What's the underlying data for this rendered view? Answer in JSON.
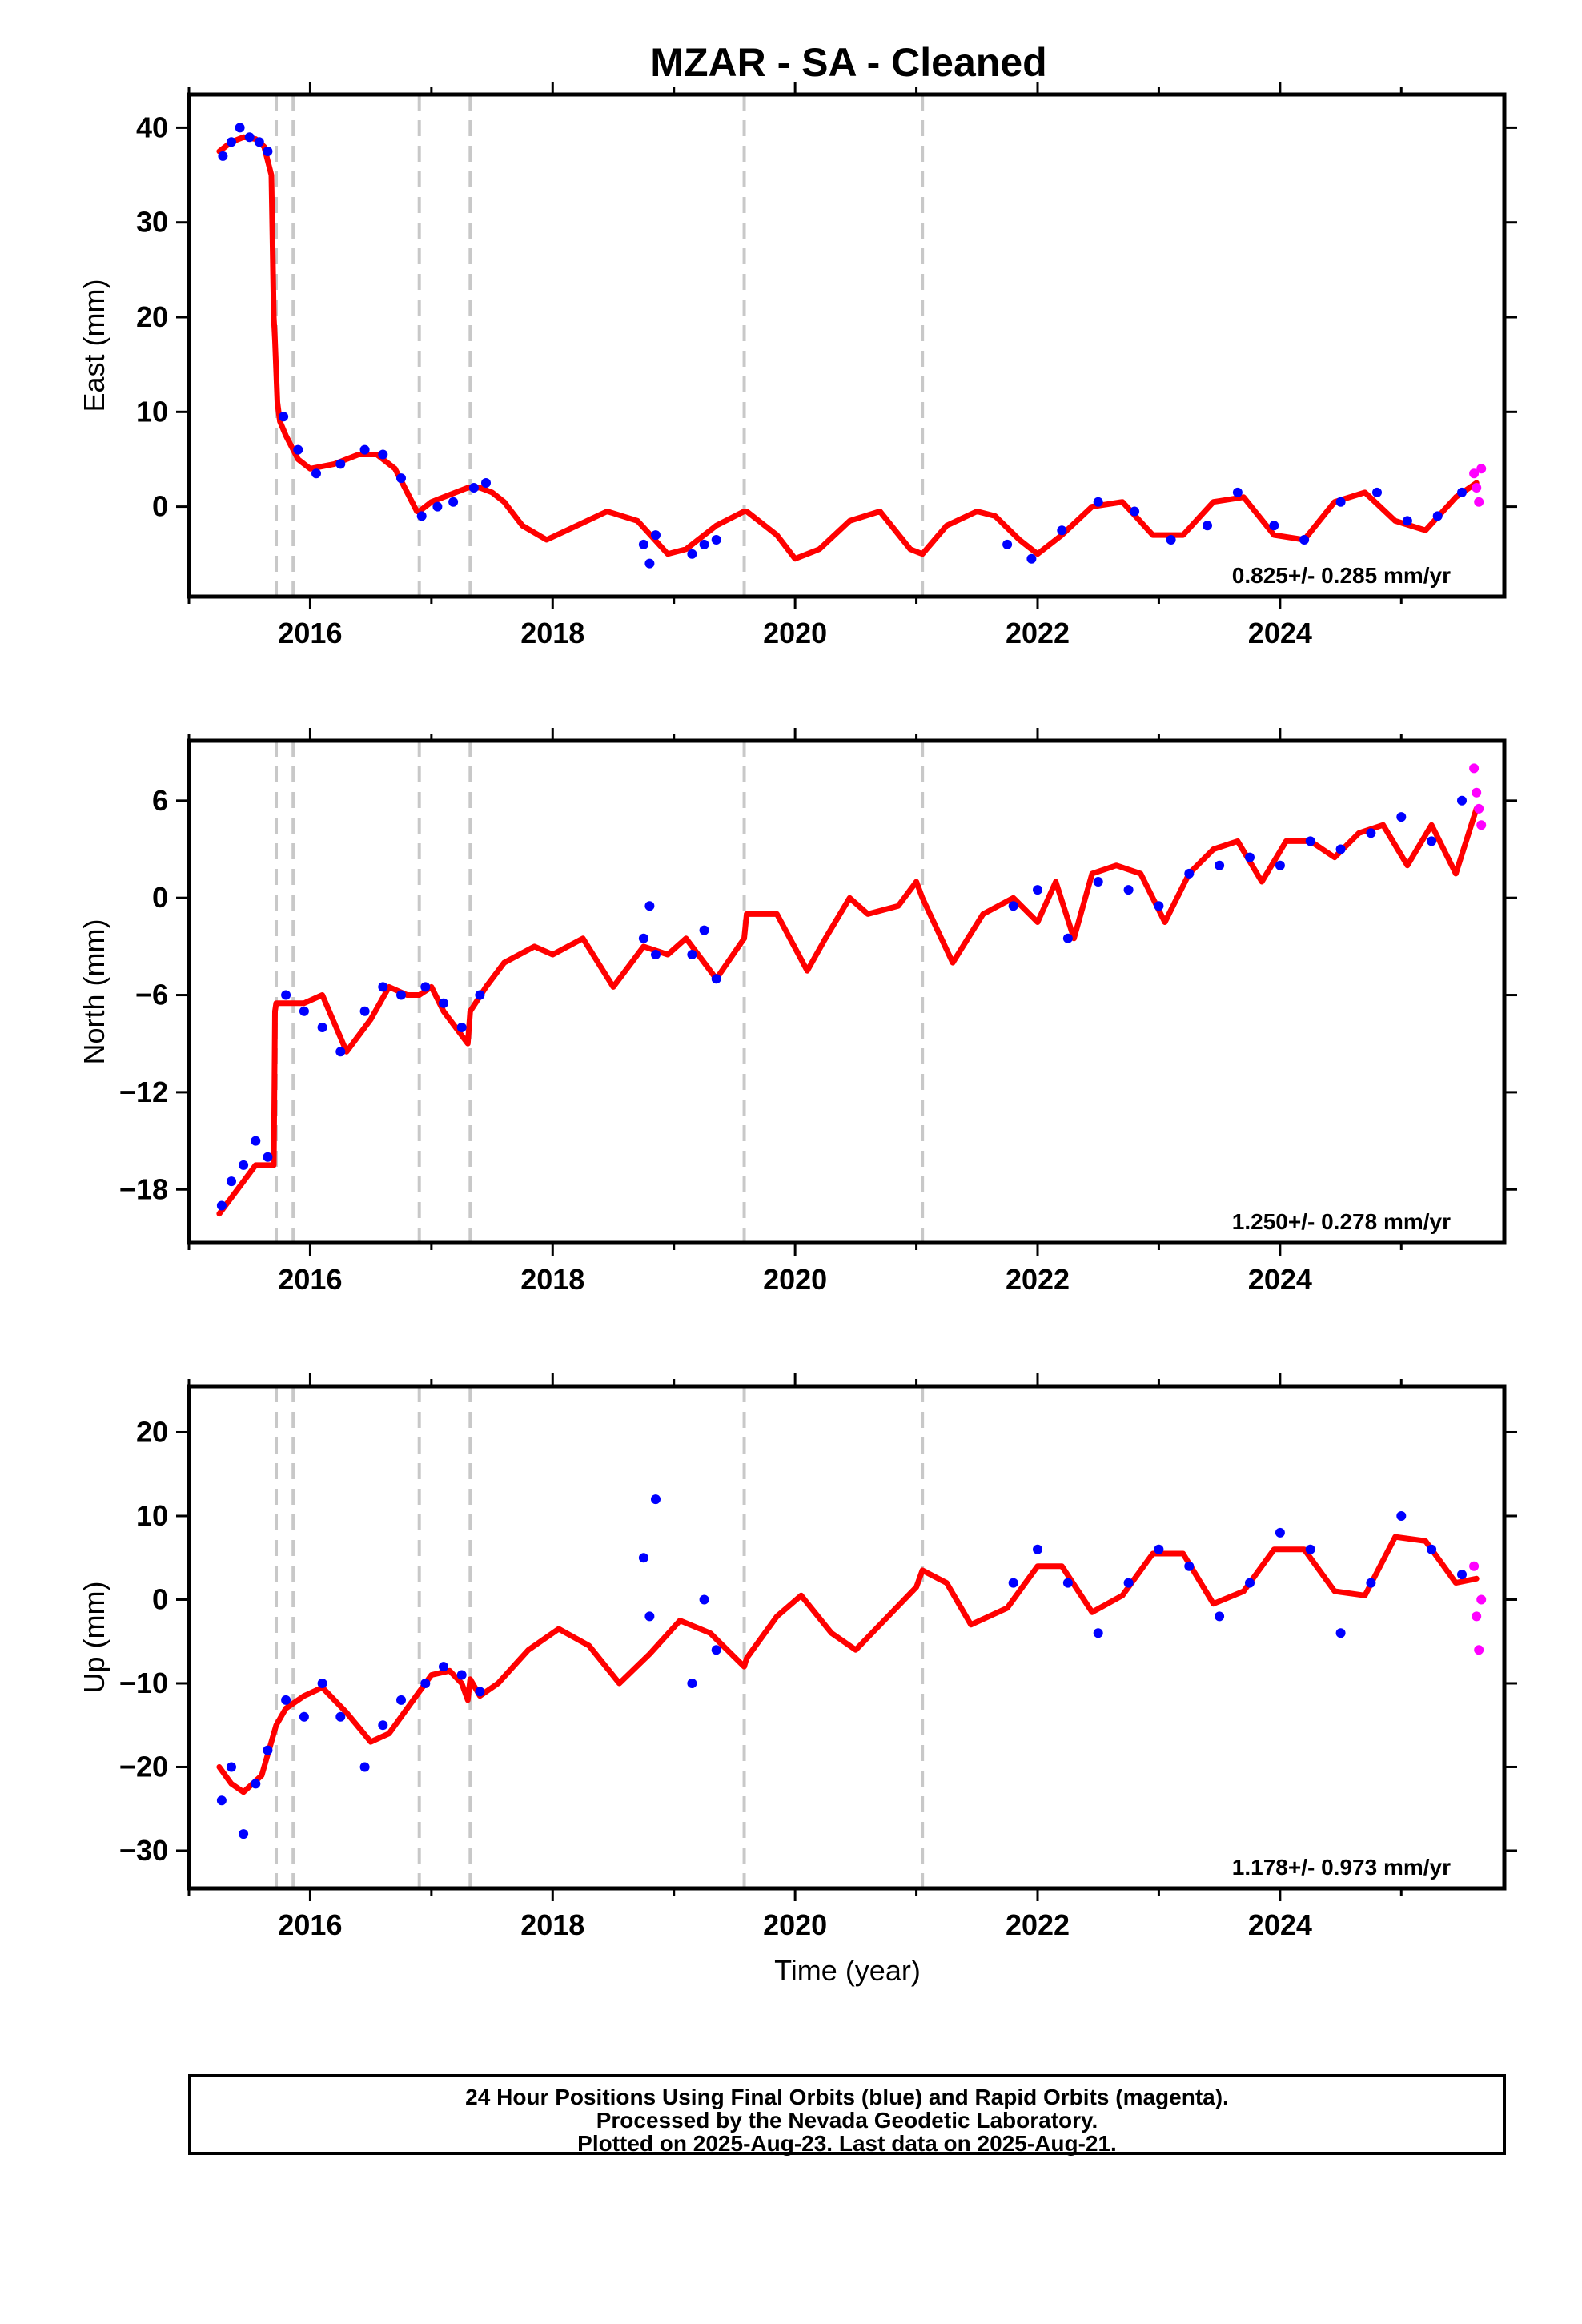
{
  "title": "MZAR  - SA - Cleaned",
  "colors": {
    "final_orbits": "#0000ff",
    "rapid_orbits": "#ff00ff",
    "model": "#ff0000",
    "event_lines": "#c8c8c8"
  },
  "event_lines": [
    2015.72,
    2015.86,
    2016.9,
    2017.32,
    2019.58,
    2021.05
  ],
  "x_range": [
    2015.0,
    2025.85
  ],
  "x_ticks": [
    2016,
    2018,
    2020,
    2022,
    2024
  ],
  "x_label": "Time (year)",
  "chart_data": [
    {
      "type": "scatter",
      "ylabel": "East (mm)",
      "ylim": [
        -9.5,
        43.5
      ],
      "yticks": [
        0,
        10,
        20,
        30,
        40
      ],
      "rate_label": "0.825+/- 0.285 mm/yr",
      "series": [
        {
          "color": "#ff0000",
          "style": "line",
          "x": [
            2015.25,
            2015.35,
            2015.45,
            2015.55,
            2015.62,
            2015.68,
            2015.7,
            2015.71,
            2015.73,
            2015.75,
            2015.8,
            2015.9,
            2016.0,
            2016.2,
            2016.4,
            2016.55,
            2016.7,
            2016.8,
            2016.88,
            2016.9,
            2017.0,
            2017.1,
            2017.2,
            2017.3,
            2017.32,
            2017.4,
            2017.5,
            2017.6,
            2017.75,
            2017.95,
            2018.2,
            2018.45,
            2018.7,
            2018.95,
            2019.1,
            2019.35,
            2019.58,
            2019.6,
            2019.85,
            2020.0,
            2020.2,
            2020.45,
            2020.7,
            2020.95,
            2021.05,
            2021.25,
            2021.5,
            2021.65,
            2021.85,
            2022.0,
            2022.2,
            2022.45,
            2022.7,
            2022.95,
            2023.2,
            2023.45,
            2023.7,
            2023.95,
            2024.2,
            2024.45,
            2024.7,
            2024.95,
            2025.2,
            2025.45,
            2025.62
          ],
          "y": [
            37.5,
            38.5,
            39.0,
            38.8,
            38.0,
            35.0,
            20.0,
            17.5,
            11.0,
            9.0,
            7.5,
            5.0,
            4.0,
            4.5,
            5.5,
            5.5,
            4.0,
            1.5,
            -0.5,
            -0.5,
            0.5,
            1.0,
            1.5,
            2.0,
            2.0,
            2.0,
            1.5,
            0.5,
            -2.0,
            -3.5,
            -2.0,
            -0.5,
            -1.5,
            -5.0,
            -4.5,
            -2.0,
            -0.5,
            -0.5,
            -3.0,
            -5.5,
            -4.5,
            -1.5,
            -0.5,
            -4.5,
            -5.0,
            -2.0,
            -0.5,
            -1.0,
            -3.5,
            -5.0,
            -3.0,
            0.0,
            0.5,
            -3.0,
            -3.0,
            0.5,
            1.0,
            -3.0,
            -3.5,
            0.5,
            1.5,
            -1.5,
            -2.5,
            1.0,
            2.5
          ]
        },
        {
          "color": "#0000ff",
          "style": "points",
          "x": [
            2015.28,
            2015.35,
            2015.42,
            2015.5,
            2015.58,
            2015.65,
            2015.78,
            2015.9,
            2016.05,
            2016.25,
            2016.45,
            2016.6,
            2016.75,
            2016.92,
            2017.05,
            2017.18,
            2017.35,
            2017.45,
            2018.75,
            2018.8,
            2018.85,
            2019.15,
            2019.25,
            2019.35,
            2021.75,
            2021.95,
            2022.2,
            2022.5,
            2022.8,
            2023.1,
            2023.4,
            2023.65,
            2023.95,
            2024.2,
            2024.5,
            2024.8,
            2025.05,
            2025.3,
            2025.5
          ],
          "y": [
            37.0,
            38.5,
            40.0,
            39.0,
            38.5,
            37.5,
            9.5,
            6.0,
            3.5,
            4.5,
            6.0,
            5.5,
            3.0,
            -1.0,
            0.0,
            0.5,
            2.0,
            2.5,
            -4.0,
            -6.0,
            -3.0,
            -5.0,
            -4.0,
            -3.5,
            -4.0,
            -5.5,
            -2.5,
            0.5,
            -0.5,
            -3.5,
            -2.0,
            1.5,
            -2.0,
            -3.5,
            0.5,
            1.5,
            -1.5,
            -1.0,
            1.5
          ]
        },
        {
          "color": "#ff00ff",
          "style": "points",
          "x": [
            2025.6,
            2025.62,
            2025.64,
            2025.66
          ],
          "y": [
            3.5,
            2.0,
            0.5,
            4.0
          ]
        }
      ]
    },
    {
      "type": "scatter",
      "ylabel": "North (mm)",
      "ylim": [
        -21.3,
        9.7
      ],
      "yticks": [
        -18,
        -12,
        -6,
        0,
        6
      ],
      "rate_label": "1.250+/- 0.278 mm/yr",
      "series": [
        {
          "color": "#ff0000",
          "style": "line",
          "x": [
            2015.25,
            2015.4,
            2015.55,
            2015.7,
            2015.71,
            2015.72,
            2015.75,
            2015.85,
            2015.95,
            2016.1,
            2016.3,
            2016.5,
            2016.65,
            2016.8,
            2016.9,
            2017.0,
            2017.1,
            2017.3,
            2017.32,
            2017.45,
            2017.6,
            2017.85,
            2018.0,
            2018.25,
            2018.5,
            2018.75,
            2018.95,
            2019.1,
            2019.35,
            2019.58,
            2019.6,
            2019.85,
            2020.1,
            2020.25,
            2020.45,
            2020.6,
            2020.85,
            2021.0,
            2021.05,
            2021.3,
            2021.55,
            2021.8,
            2022.0,
            2022.15,
            2022.3,
            2022.45,
            2022.65,
            2022.85,
            2023.05,
            2023.25,
            2023.45,
            2023.65,
            2023.85,
            2024.05,
            2024.25,
            2024.45,
            2024.65,
            2024.85,
            2025.05,
            2025.25,
            2025.45,
            2025.62
          ],
          "y": [
            -19.5,
            -18.0,
            -16.5,
            -16.5,
            -7.0,
            -6.5,
            -6.5,
            -6.5,
            -6.5,
            -6.0,
            -9.5,
            -7.5,
            -5.5,
            -6.0,
            -6.0,
            -5.5,
            -7.0,
            -9.0,
            -7.0,
            -5.5,
            -4.0,
            -3.0,
            -3.5,
            -2.5,
            -5.5,
            -3.0,
            -3.5,
            -2.5,
            -5.0,
            -2.5,
            -1.0,
            -1.0,
            -4.5,
            -2.5,
            0.0,
            -1.0,
            -0.5,
            1.0,
            0.0,
            -4.0,
            -1.0,
            0.0,
            -1.5,
            1.0,
            -2.5,
            1.5,
            2.0,
            1.5,
            -1.5,
            1.5,
            3.0,
            3.5,
            1.0,
            3.5,
            3.5,
            2.5,
            4.0,
            4.5,
            2.0,
            4.5,
            1.5,
            5.5
          ]
        },
        {
          "color": "#0000ff",
          "style": "points",
          "x": [
            2015.27,
            2015.35,
            2015.45,
            2015.55,
            2015.65,
            2015.8,
            2015.95,
            2016.1,
            2016.25,
            2016.45,
            2016.6,
            2016.75,
            2016.95,
            2017.1,
            2017.25,
            2017.4,
            2018.75,
            2018.8,
            2018.85,
            2019.15,
            2019.25,
            2019.35,
            2021.8,
            2022.0,
            2022.25,
            2022.5,
            2022.75,
            2023.0,
            2023.25,
            2023.5,
            2023.75,
            2024.0,
            2024.25,
            2024.5,
            2024.75,
            2025.0,
            2025.25,
            2025.5
          ],
          "y": [
            -19.0,
            -17.5,
            -16.5,
            -15.0,
            -16.0,
            -6.0,
            -7.0,
            -8.0,
            -9.5,
            -7.0,
            -5.5,
            -6.0,
            -5.5,
            -6.5,
            -8.0,
            -6.0,
            -2.5,
            -0.5,
            -3.5,
            -3.5,
            -2.0,
            -5.0,
            -0.5,
            0.5,
            -2.5,
            1.0,
            0.5,
            -0.5,
            1.5,
            2.0,
            2.5,
            2.0,
            3.5,
            3.0,
            4.0,
            5.0,
            3.5,
            6.0
          ]
        },
        {
          "color": "#ff00ff",
          "style": "points",
          "x": [
            2025.6,
            2025.62,
            2025.64,
            2025.66
          ],
          "y": [
            8.0,
            6.5,
            5.5,
            4.5
          ]
        }
      ]
    },
    {
      "type": "scatter",
      "ylabel": "Up (mm)",
      "ylim": [
        -34.5,
        25.5
      ],
      "yticks": [
        -30,
        -20,
        -10,
        0,
        10,
        20
      ],
      "rate_label": "1.178+/- 0.973 mm/yr",
      "series": [
        {
          "color": "#ff0000",
          "style": "line",
          "x": [
            2015.25,
            2015.35,
            2015.45,
            2015.6,
            2015.72,
            2015.8,
            2015.95,
            2016.1,
            2016.3,
            2016.5,
            2016.65,
            2016.8,
            2016.9,
            2017.0,
            2017.15,
            2017.25,
            2017.3,
            2017.32,
            2017.4,
            2017.55,
            2017.8,
            2018.05,
            2018.3,
            2018.55,
            2018.8,
            2019.05,
            2019.3,
            2019.58,
            2019.6,
            2019.85,
            2020.05,
            2020.3,
            2020.5,
            2020.8,
            2021.0,
            2021.05,
            2021.25,
            2021.45,
            2021.75,
            2022.0,
            2022.2,
            2022.45,
            2022.7,
            2022.95,
            2023.2,
            2023.45,
            2023.7,
            2023.95,
            2024.2,
            2024.45,
            2024.7,
            2024.95,
            2025.2,
            2025.45,
            2025.62
          ],
          "y": [
            -20.0,
            -22.0,
            -23.0,
            -21.0,
            -15.0,
            -13.0,
            -11.5,
            -10.5,
            -13.5,
            -17.0,
            -16.0,
            -13.0,
            -11.0,
            -9.0,
            -8.5,
            -10.0,
            -12.0,
            -9.5,
            -11.5,
            -10.0,
            -6.0,
            -3.5,
            -5.5,
            -10.0,
            -6.5,
            -2.5,
            -4.0,
            -8.0,
            -7.0,
            -2.0,
            0.5,
            -4.0,
            -6.0,
            -1.5,
            1.5,
            3.5,
            2.0,
            -3.0,
            -1.0,
            4.0,
            4.0,
            -1.5,
            0.5,
            5.5,
            5.5,
            -0.5,
            1.0,
            6.0,
            6.0,
            1.0,
            0.5,
            7.5,
            7.0,
            2.0,
            2.5
          ]
        },
        {
          "color": "#0000ff",
          "style": "points",
          "x": [
            2015.27,
            2015.35,
            2015.45,
            2015.55,
            2015.65,
            2015.8,
            2015.95,
            2016.1,
            2016.25,
            2016.45,
            2016.6,
            2016.75,
            2016.95,
            2017.1,
            2017.25,
            2017.4,
            2018.75,
            2018.8,
            2018.85,
            2019.15,
            2019.25,
            2019.35,
            2021.8,
            2022.0,
            2022.25,
            2022.5,
            2022.75,
            2023.0,
            2023.25,
            2023.5,
            2023.75,
            2024.0,
            2024.25,
            2024.5,
            2024.75,
            2025.0,
            2025.25,
            2025.5
          ],
          "y": [
            -24.0,
            -20.0,
            -28.0,
            -22.0,
            -18.0,
            -12.0,
            -14.0,
            -10.0,
            -14.0,
            -20.0,
            -15.0,
            -12.0,
            -10.0,
            -8.0,
            -9.0,
            -11.0,
            5.0,
            -2.0,
            12.0,
            -10.0,
            0.0,
            -6.0,
            2.0,
            6.0,
            2.0,
            -4.0,
            2.0,
            6.0,
            4.0,
            -2.0,
            2.0,
            8.0,
            6.0,
            -4.0,
            2.0,
            10.0,
            6.0,
            3.0
          ]
        },
        {
          "color": "#ff00ff",
          "style": "points",
          "x": [
            2025.6,
            2025.62,
            2025.64,
            2025.66
          ],
          "y": [
            4.0,
            -2.0,
            -6.0,
            0.0
          ]
        }
      ]
    }
  ],
  "footer": {
    "line1": "24 Hour Positions Using Final Orbits (blue) and Rapid Orbits (magenta).",
    "line2": "Processed by the Nevada Geodetic Laboratory.",
    "line3": "Plotted on 2025-Aug-23. Last data on 2025-Aug-21."
  }
}
